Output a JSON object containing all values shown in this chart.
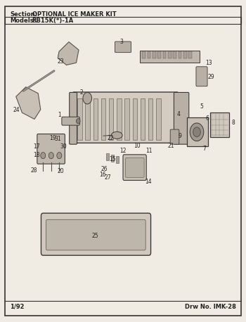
{
  "section_label": "Section:",
  "section_title": "OPTIONAL ICE MAKER KIT",
  "models_label": "Models:",
  "models_value": "RB15K(*)-1A",
  "footer_left": "1/92",
  "footer_right": "Drw No. IMK-28",
  "bg_color": "#f0ece4",
  "border_color": "#333333",
  "text_color": "#222222"
}
